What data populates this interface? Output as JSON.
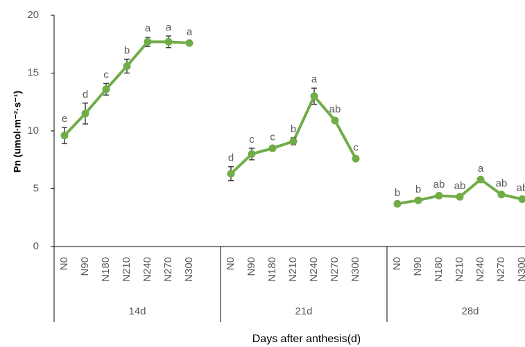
{
  "chart_data": {
    "type": "line",
    "y_label": "Pn (umol·m⁻²·s⁻¹)",
    "x_label": "Days after anthesis(d)",
    "color": "#70ad47",
    "ylim": [
      0,
      20
    ],
    "yticks": [
      0,
      5,
      10,
      15,
      20
    ],
    "groups": [
      {
        "name": "14d",
        "categories": [
          "N0",
          "N90",
          "N180",
          "N210",
          "N240",
          "N270",
          "N300"
        ],
        "values": [
          9.6,
          11.5,
          13.6,
          15.6,
          17.7,
          17.7,
          17.6
        ],
        "errors": [
          0.7,
          0.9,
          0.5,
          0.6,
          0.4,
          0.5,
          0.2
        ],
        "letters": [
          "e",
          "d",
          "c",
          "b",
          "a",
          "a",
          "a"
        ]
      },
      {
        "name": "21d",
        "categories": [
          "N0",
          "N90",
          "N180",
          "N210",
          "N240",
          "N270",
          "N300"
        ],
        "values": [
          6.3,
          8.0,
          8.5,
          9.1,
          13.0,
          10.9,
          7.6
        ],
        "errors": [
          0.6,
          0.5,
          0.2,
          0.3,
          0.7,
          0.2,
          0.2
        ],
        "letters": [
          "d",
          "c",
          "c",
          "b",
          "a",
          "ab",
          "c"
        ]
      },
      {
        "name": "28d",
        "categories": [
          "N0",
          "N90",
          "N180",
          "N210",
          "N240",
          "N270",
          "N300"
        ],
        "values": [
          3.7,
          4.0,
          4.4,
          4.3,
          5.8,
          4.5,
          4.1
        ],
        "errors": [
          0.2,
          0.2,
          0.2,
          0.2,
          0.2,
          0.2,
          0.2
        ],
        "letters": [
          "b",
          "b",
          "ab",
          "ab",
          "a",
          "ab",
          "ab"
        ]
      }
    ]
  }
}
